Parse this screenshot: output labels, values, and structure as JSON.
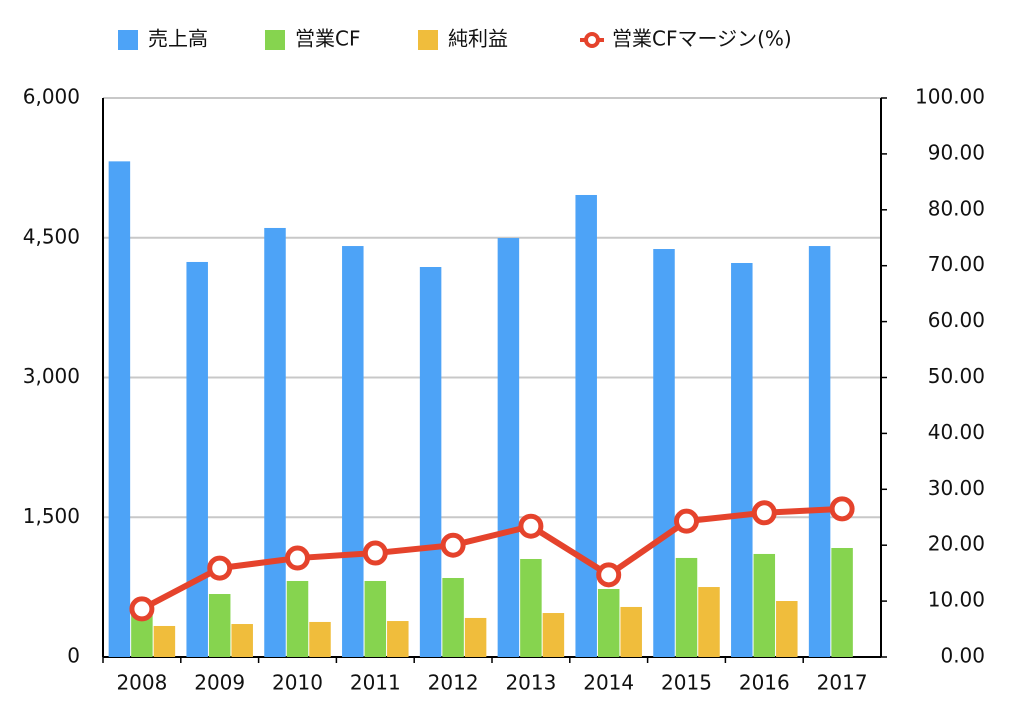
{
  "chart_data": {
    "type": "bar",
    "categories": [
      "2008",
      "2009",
      "2010",
      "2011",
      "2012",
      "2013",
      "2014",
      "2015",
      "2016",
      "2017"
    ],
    "series": [
      {
        "name": "売上高",
        "color": "#4da3f7",
        "values": [
          5320,
          4240,
          4605,
          4411,
          4186,
          4497,
          4959,
          4379,
          4229,
          4411
        ]
      },
      {
        "name": "営業CF",
        "color": "#86d44f",
        "values": [
          500,
          676,
          816,
          816,
          848,
          1052,
          730,
          1063,
          1106,
          1170
        ]
      },
      {
        "name": "純利益",
        "color": "#f0bd3c",
        "values": [
          333,
          354,
          376,
          386,
          419,
          472,
          537,
          751,
          601,
          null
        ]
      },
      {
        "name": "営業CFマージン(%)",
        "color": "#e5432c",
        "type": "line",
        "axis": "y2",
        "values": [
          8.6,
          15.9,
          17.7,
          18.6,
          20.0,
          23.4,
          14.7,
          24.3,
          25.8,
          26.5
        ]
      }
    ],
    "ylim": [
      0,
      6000
    ],
    "yticks": [
      0,
      {
        "value": 1500,
        "label": "1,500"
      },
      {
        "value": 3000,
        "label": "3,000"
      },
      {
        "value": 4500,
        "label": "4,500"
      },
      {
        "value": 6000,
        "label": "6,000"
      }
    ],
    "y2lim": [
      0,
      100
    ],
    "y2ticks": [
      {
        "value": 0,
        "label": "0.00"
      },
      {
        "value": 10,
        "label": "10.00"
      },
      {
        "value": 20,
        "label": "20.00"
      },
      {
        "value": 30,
        "label": "30.00"
      },
      {
        "value": 40,
        "label": "40.00"
      },
      {
        "value": 50,
        "label": "50.00"
      },
      {
        "value": 60,
        "label": "60.00"
      },
      {
        "value": 70,
        "label": "70.00"
      },
      {
        "value": 80,
        "label": "80.00"
      },
      {
        "value": 90,
        "label": "90.00"
      },
      {
        "value": 100,
        "label": "100.00"
      }
    ],
    "grid": true,
    "legend": "top"
  }
}
